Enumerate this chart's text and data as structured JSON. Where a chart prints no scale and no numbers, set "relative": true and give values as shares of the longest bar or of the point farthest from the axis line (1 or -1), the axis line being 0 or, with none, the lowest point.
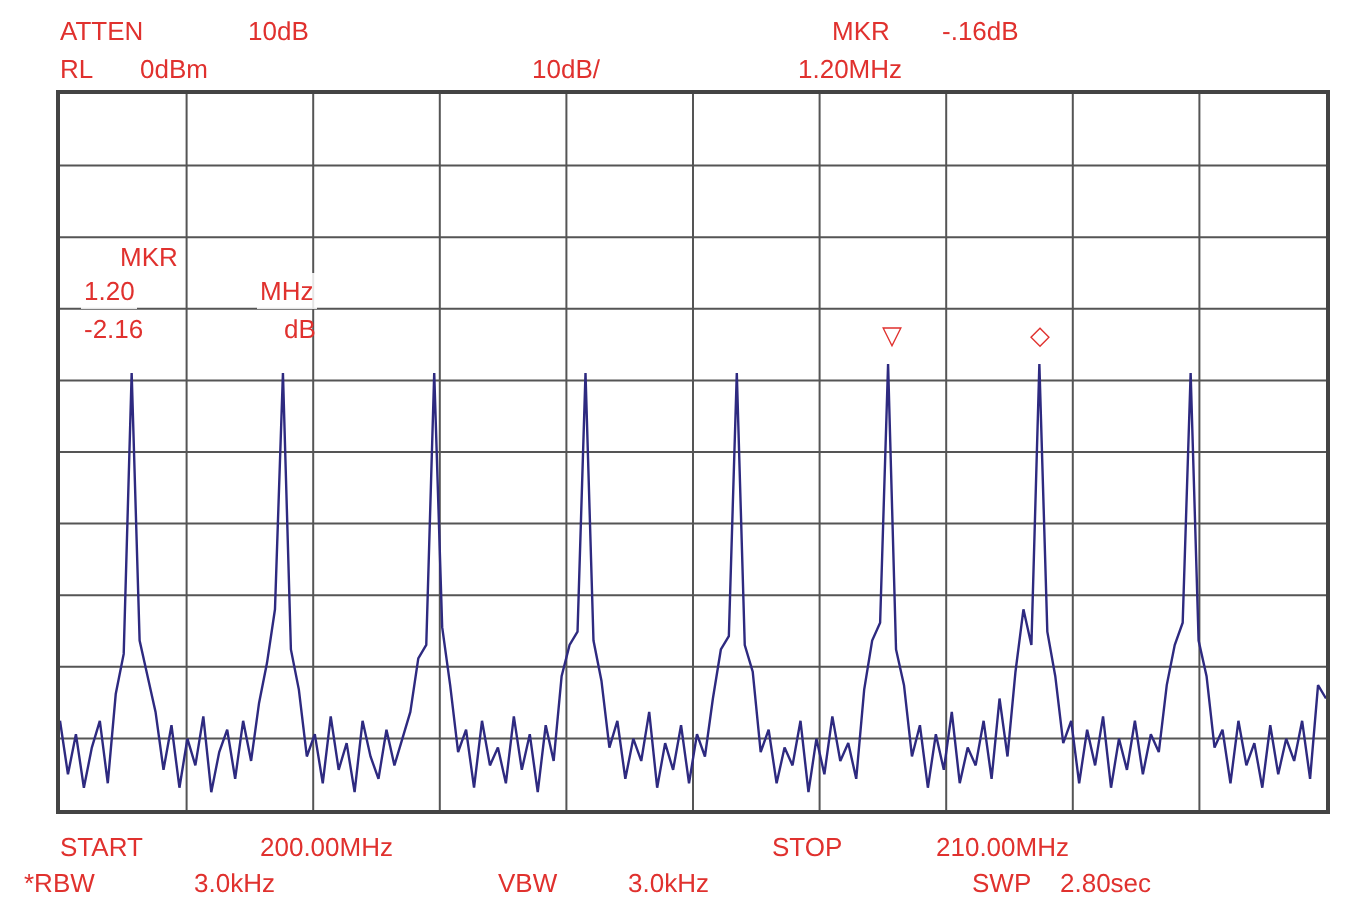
{
  "chart_data": {
    "type": "line",
    "relative": true,
    "grid": true,
    "categories": [
      null,
      null,
      null,
      null,
      null,
      null,
      null,
      null,
      null,
      null,
      null,
      null,
      null,
      null,
      null,
      null,
      null,
      null,
      null,
      null,
      null,
      null,
      null,
      null,
      null,
      null,
      null,
      null,
      null,
      null,
      null,
      null,
      null,
      null,
      null,
      null,
      null,
      null,
      null,
      null,
      null,
      null,
      null,
      null,
      null,
      null,
      null,
      null,
      null,
      null,
      null,
      null,
      null,
      null,
      null,
      null,
      null,
      null,
      null,
      null,
      null,
      null,
      null,
      null,
      null,
      null,
      null,
      null,
      null,
      null,
      null,
      null,
      null,
      null,
      null,
      null,
      null,
      null,
      null,
      null,
      null,
      null,
      null,
      null,
      null,
      null,
      null,
      null,
      null,
      null,
      null,
      null,
      null,
      null,
      null,
      null,
      null,
      null,
      null,
      null,
      null,
      null,
      null,
      null,
      null,
      null,
      null,
      null,
      null,
      null,
      null,
      null,
      null,
      null,
      null,
      null,
      null,
      null,
      null,
      null,
      null,
      null,
      null,
      null,
      null,
      null,
      null,
      null,
      null,
      null,
      null,
      null,
      null,
      null,
      null,
      null,
      null,
      null,
      null,
      null,
      null,
      null,
      null,
      null,
      null,
      null,
      null,
      null,
      null,
      null,
      null,
      null,
      null,
      null,
      null,
      null,
      null,
      null,
      null,
      null
    ],
    "series": [
      {
        "color": "#2e2a80",
        "values": [
          0.2,
          0.08,
          0.17,
          0.05,
          0.14,
          0.2,
          0.06,
          0.26,
          0.35,
          0.98,
          0.38,
          0.3,
          0.22,
          0.09,
          0.19,
          0.05,
          0.16,
          0.1,
          0.21,
          0.04,
          0.13,
          0.18,
          0.07,
          0.2,
          0.11,
          0.24,
          0.33,
          0.45,
          0.98,
          0.36,
          0.27,
          0.12,
          0.17,
          0.06,
          0.21,
          0.09,
          0.15,
          0.04,
          0.2,
          0.12,
          0.07,
          0.18,
          0.1,
          0.16,
          0.22,
          0.34,
          0.37,
          0.98,
          0.41,
          0.28,
          0.13,
          0.18,
          0.05,
          0.2,
          0.1,
          0.14,
          0.06,
          0.21,
          0.09,
          0.17,
          0.04,
          0.19,
          0.11,
          0.3,
          0.37,
          0.4,
          0.98,
          0.38,
          0.29,
          0.14,
          0.2,
          0.07,
          0.16,
          0.11,
          0.22,
          0.05,
          0.15,
          0.09,
          0.19,
          0.06,
          0.17,
          0.12,
          0.25,
          0.36,
          0.39,
          0.98,
          0.37,
          0.31,
          0.13,
          0.18,
          0.06,
          0.14,
          0.1,
          0.2,
          0.04,
          0.16,
          0.08,
          0.21,
          0.11,
          0.15,
          0.07,
          0.27,
          0.38,
          0.42,
          1.0,
          0.36,
          0.28,
          0.12,
          0.19,
          0.05,
          0.17,
          0.09,
          0.22,
          0.06,
          0.14,
          0.1,
          0.2,
          0.07,
          0.25,
          0.12,
          0.31,
          0.45,
          0.37,
          1.0,
          0.4,
          0.3,
          0.15,
          0.2,
          0.06,
          0.18,
          0.1,
          0.21,
          0.05,
          0.16,
          0.09,
          0.2,
          0.08,
          0.17,
          0.13,
          0.28,
          0.37,
          0.42,
          0.98,
          0.38,
          0.3,
          0.14,
          0.18,
          0.06,
          0.2,
          0.1,
          0.15,
          0.05,
          0.19,
          0.08,
          0.16,
          0.11,
          0.2,
          0.07,
          0.28,
          0.25
        ]
      }
    ],
    "annotations": [
      "ATTEN",
      "10dB",
      "RL",
      "0dBm",
      "10dB/",
      "MKR",
      "-.16dB",
      "1.20MHz",
      "MKR",
      "1.20",
      "MHz",
      "-2.16",
      "dB",
      "START",
      "200.00MHz",
      "STOP",
      "210.00MHz",
      "*RBW",
      "3.0kHz",
      "VBW",
      "3.0kHz",
      "SWP",
      "2.80sec",
      "▽",
      "◇"
    ]
  }
}
